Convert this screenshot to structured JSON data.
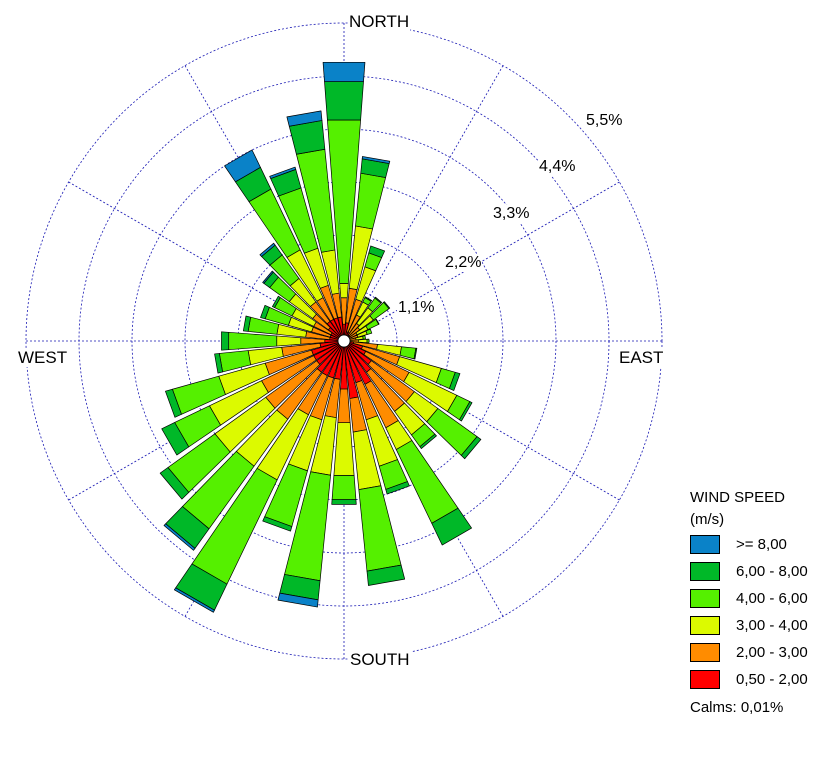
{
  "chart_data": {
    "type": "wind_rose",
    "title": "",
    "directions": {
      "north": "NORTH",
      "south": "SOUTH",
      "west": "WEST",
      "east": "EAST"
    },
    "ring_labels": [
      "1,1%",
      "2,2%",
      "3,3%",
      "4,4%",
      "5,5%"
    ],
    "ring_values": [
      1.1,
      2.2,
      3.3,
      4.4,
      5.5
    ],
    "max_percent": 6.6,
    "sector_count": 36,
    "legend_title": "WIND SPEED (m/s)",
    "speed_classes": [
      {
        "label": "0,50 - 2,00",
        "color": "#ff0000"
      },
      {
        "label": "2,00 - 3,00",
        "color": "#ff8c00"
      },
      {
        "label": "3,00 - 4,00",
        "color": "#dcfa00"
      },
      {
        "label": "4,00 - 6,00",
        "color": "#55f000"
      },
      {
        "label": "6,00 - 8,00",
        "color": "#00b828"
      },
      {
        "label": ">= 8,00",
        "color": "#0a82c8"
      }
    ],
    "legend_order": [
      5,
      4,
      3,
      2,
      1,
      0
    ],
    "calms": "Calms: 0,01%",
    "sectors": [
      {
        "dir": 0,
        "cum": [
          0.35,
          0.9,
          1.2,
          4.6,
          5.4,
          5.8
        ]
      },
      {
        "dir": 10,
        "cum": [
          0.38,
          1.1,
          2.4,
          3.5,
          3.8,
          3.85
        ]
      },
      {
        "dir": 20,
        "cum": [
          0.2,
          0.9,
          1.6,
          1.9,
          2.05,
          2.05
        ]
      },
      {
        "dir": 30,
        "cum": [
          0.2,
          0.6,
          0.9,
          1.0,
          1.02,
          1.02
        ]
      },
      {
        "dir": 40,
        "cum": [
          0.15,
          0.45,
          0.85,
          1.1,
          1.12,
          1.12
        ]
      },
      {
        "dir": 50,
        "cum": [
          0.15,
          0.4,
          0.75,
          1.15,
          1.17,
          1.17
        ]
      },
      {
        "dir": 60,
        "cum": [
          0.12,
          0.3,
          0.55,
          0.8,
          0.81,
          0.81
        ]
      },
      {
        "dir": 70,
        "cum": [
          0.12,
          0.3,
          0.5,
          0.6,
          0.6,
          0.6
        ]
      },
      {
        "dir": 80,
        "cum": [
          0.1,
          0.25,
          0.4,
          0.45,
          0.45,
          0.45
        ]
      },
      {
        "dir": 90,
        "cum": [
          0.12,
          0.3,
          0.48,
          0.52,
          0.52,
          0.52
        ]
      },
      {
        "dir": 100,
        "cum": [
          0.2,
          0.7,
          1.2,
          1.5,
          1.52,
          1.52
        ]
      },
      {
        "dir": 110,
        "cum": [
          0.4,
          1.2,
          2.1,
          2.4,
          2.5,
          2.5
        ]
      },
      {
        "dir": 120,
        "cum": [
          0.5,
          1.5,
          2.6,
          2.9,
          2.95,
          2.95
        ]
      },
      {
        "dir": 130,
        "cum": [
          0.7,
          1.8,
          2.4,
          3.4,
          3.5,
          3.5
        ]
      },
      {
        "dir": 140,
        "cum": [
          0.8,
          1.8,
          2.4,
          2.7,
          2.75,
          2.75
        ]
      },
      {
        "dir": 150,
        "cum": [
          1.0,
          2.0,
          2.5,
          4.2,
          4.7,
          4.7
        ]
      },
      {
        "dir": 160,
        "cum": [
          0.9,
          1.7,
          2.7,
          3.2,
          3.3,
          3.3
        ]
      },
      {
        "dir": 170,
        "cum": [
          1.2,
          1.9,
          3.1,
          4.8,
          5.1,
          5.1
        ]
      },
      {
        "dir": 180,
        "cum": [
          1.0,
          1.7,
          2.8,
          3.3,
          3.4,
          3.4
        ]
      },
      {
        "dir": 190,
        "cum": [
          0.8,
          1.6,
          2.8,
          5.0,
          5.4,
          5.55
        ]
      },
      {
        "dir": 200,
        "cum": [
          0.8,
          1.7,
          2.8,
          4.0,
          4.1,
          4.1
        ]
      },
      {
        "dir": 210,
        "cum": [
          0.8,
          1.7,
          3.2,
          5.6,
          6.2,
          6.25
        ]
      },
      {
        "dir": 220,
        "cum": [
          0.8,
          2.0,
          3.2,
          4.8,
          5.3,
          5.35
        ]
      },
      {
        "dir": 230,
        "cum": [
          0.7,
          2.0,
          3.3,
          4.5,
          4.7,
          4.7
        ]
      },
      {
        "dir": 240,
        "cum": [
          0.7,
          1.9,
          3.1,
          3.9,
          4.2,
          4.2
        ]
      },
      {
        "dir": 250,
        "cum": [
          0.7,
          1.7,
          2.7,
          3.7,
          3.85,
          3.85
        ]
      },
      {
        "dir": 260,
        "cum": [
          0.5,
          1.3,
          2.0,
          2.6,
          2.7,
          2.7
        ]
      },
      {
        "dir": 270,
        "cum": [
          0.4,
          0.9,
          1.4,
          2.4,
          2.55,
          2.55
        ]
      },
      {
        "dir": 280,
        "cum": [
          0.3,
          0.8,
          1.4,
          2.0,
          2.1,
          2.1
        ]
      },
      {
        "dir": 290,
        "cum": [
          0.3,
          0.7,
          1.2,
          1.7,
          1.8,
          1.8
        ]
      },
      {
        "dir": 300,
        "cum": [
          0.3,
          0.7,
          1.2,
          1.6,
          1.65,
          1.65
        ]
      },
      {
        "dir": 310,
        "cum": [
          0.4,
          0.8,
          1.4,
          1.9,
          2.05,
          2.08
        ]
      },
      {
        "dir": 320,
        "cum": [
          0.5,
          1.0,
          1.6,
          2.2,
          2.45,
          2.5
        ]
      },
      {
        "dir": 330,
        "cum": [
          0.5,
          1.0,
          2.1,
          3.5,
          4.0,
          4.4
        ]
      },
      {
        "dir": 340,
        "cum": [
          0.5,
          1.2,
          2.0,
          3.3,
          3.7,
          3.75
        ]
      },
      {
        "dir": 350,
        "cum": [
          0.5,
          1.0,
          1.9,
          4.0,
          4.6,
          4.8
        ]
      }
    ]
  }
}
